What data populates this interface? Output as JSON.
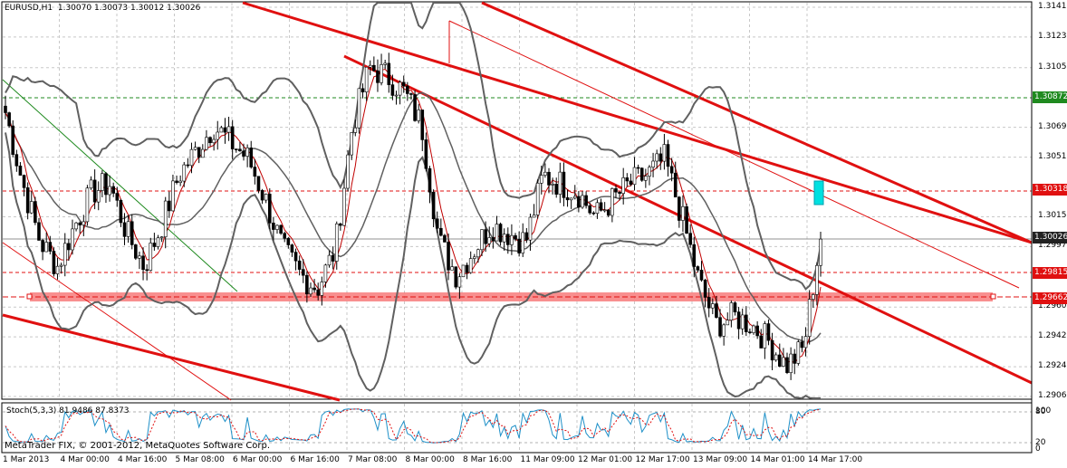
{
  "chart_info": {
    "symbol_timeframe": "EURUSD,H1",
    "ohlc": "1.30070 1.30073 1.30012 1.30026",
    "copyright": "MetaTrader FIX, © 2001-2012, MetaQuotes Software Corp.",
    "stoch_label": "Stoch(5,3,3) 81.9486 87.8373"
  },
  "price_ticks": [
    "1.31415",
    "1.31235",
    "1.31050",
    "1.30690",
    "1.30510",
    "1.30150",
    "1.29970",
    "1.29605",
    "1.29425",
    "1.29245",
    "1.29065"
  ],
  "price_badges": [
    {
      "label": "1.30872",
      "color": "#1f8a1f"
    },
    {
      "label": "1.30318",
      "color": "#e01010"
    },
    {
      "label": "1.30026",
      "color": "#222222"
    },
    {
      "label": "1.29815",
      "color": "#e01010"
    },
    {
      "label": "1.29662",
      "color": "#e01010"
    }
  ],
  "stoch_ticks": [
    "100",
    "80",
    "20",
    "0"
  ],
  "time_ticks": [
    "1 Mar 2013",
    "4 Mar 00:00",
    "4 Mar 16:00",
    "5 Mar 08:00",
    "6 Mar 00:00",
    "6 Mar 16:00",
    "7 Mar 08:00",
    "8 Mar 00:00",
    "8 Mar 16:00",
    "11 Mar 09:00",
    "12 Mar 01:00",
    "12 Mar 17:00",
    "13 Mar 09:00",
    "14 Mar 01:00",
    "14 Mar 17:00"
  ],
  "colors": {
    "bull_candle": "#ffffff",
    "bear_candle": "#000000",
    "bollinger": "#606060",
    "ma": "#c00000",
    "channel": "#e01010",
    "green_line": "#1f8a1f",
    "stoch_main": "#1e90c8",
    "stoch_signal": "#e01010",
    "cursor": "#00e0e0"
  },
  "chart_data": {
    "type": "candlestick",
    "symbol": "EURUSD",
    "timeframe": "H1",
    "ylim": [
      1.2898,
      1.315
    ],
    "closes": [
      1.3078,
      1.3035,
      1.3,
      1.2985,
      1.301,
      1.303,
      1.3035,
      1.3005,
      1.2985,
      1.301,
      1.304,
      1.3055,
      1.307,
      1.306,
      1.305,
      1.3025,
      1.2995,
      1.298,
      1.2972,
      1.2995,
      1.307,
      1.3105,
      1.31,
      1.309,
      1.307,
      1.3,
      1.298,
      1.2995,
      1.301,
      1.3005,
      1.3,
      1.304,
      1.3035,
      1.303,
      1.3015,
      1.3025,
      1.3035,
      1.304,
      1.305,
      1.3015,
      1.2975,
      1.295,
      1.2955,
      1.295,
      1.294,
      1.2925,
      1.2935,
      1.3003
    ]
  }
}
